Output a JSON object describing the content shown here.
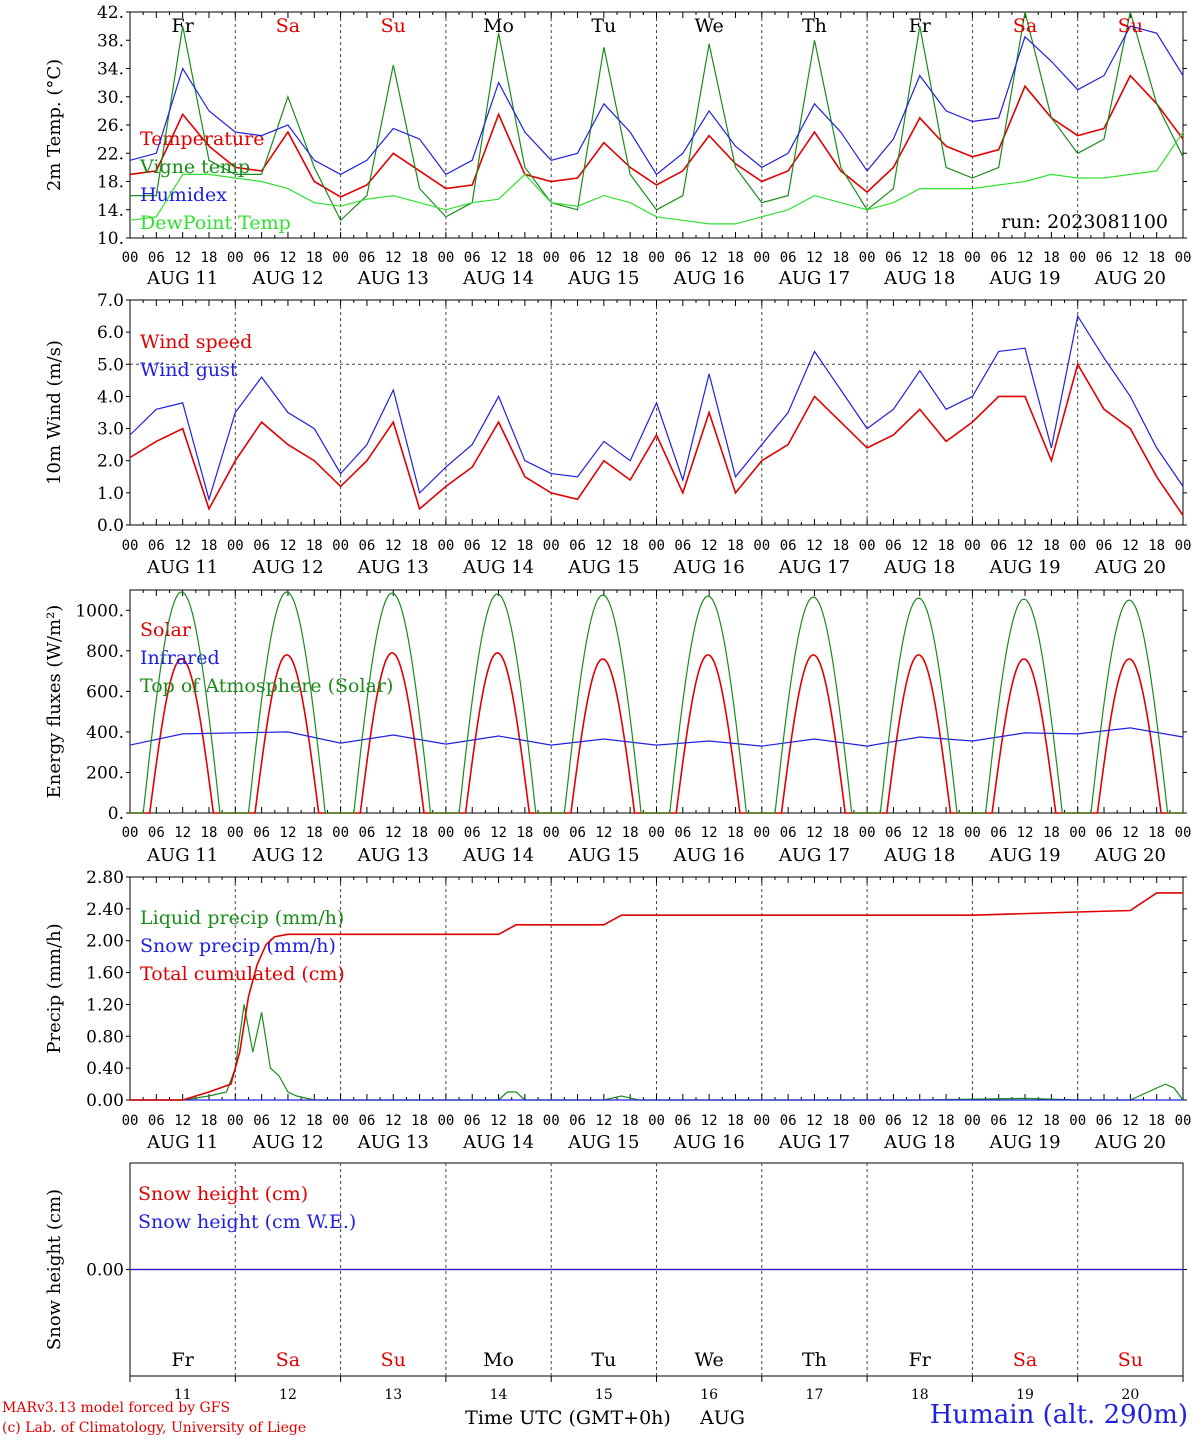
{
  "run_label": "run: 2023081100",
  "credits": [
    "MARv3.13 model forced by GFS",
    "(c) Lab. of Climatology, University of Liege"
  ],
  "station": "Humain (alt. 290m)",
  "x_axis": {
    "title": "Time UTC (GMT+0h)",
    "month": "AUG",
    "hour_ticks": [
      "00",
      "06",
      "12",
      "18"
    ],
    "final_tick": "00",
    "dates": [
      "AUG 11",
      "AUG 12",
      "AUG 13",
      "AUG 14",
      "AUG 15",
      "AUG 16",
      "AUG 17",
      "AUG 18",
      "AUG 19",
      "AUG 20"
    ],
    "day_numbers": [
      "11",
      "12",
      "13",
      "14",
      "15",
      "16",
      "17",
      "18",
      "19",
      "20"
    ],
    "weekdays": [
      "Fr",
      "Sa",
      "Su",
      "Mo",
      "Tu",
      "We",
      "Th",
      "Fr",
      "Sa",
      "Su"
    ],
    "weekend_days": [
      "Sa",
      "Su"
    ],
    "colors": {
      "weekday": "#000000",
      "weekend": "#e00000"
    }
  },
  "chart_data": [
    {
      "type": "line",
      "ylabel": "2m Temp. (°C)",
      "ylim": [
        10,
        42
      ],
      "ytick_labels": [
        "10.",
        "14.",
        "18.",
        "22.",
        "26.",
        "30.",
        "34.",
        "38.",
        "42."
      ],
      "x_unit": "hours since AUG 11 00 UTC",
      "series": [
        {
          "name": "Temperature",
          "color": "#e00000",
          "x": [
            0,
            6,
            12,
            18,
            24,
            30,
            36,
            42,
            48,
            54,
            60,
            66,
            72,
            78,
            84,
            90,
            96,
            102,
            108,
            114,
            120,
            126,
            132,
            138,
            144,
            150,
            156,
            162,
            168,
            174,
            180,
            186,
            192,
            198,
            204,
            210,
            216,
            222,
            228,
            234,
            240
          ],
          "values": [
            19,
            19.5,
            27.5,
            23,
            20,
            19.5,
            25,
            18,
            15.8,
            17.5,
            22,
            19.5,
            17,
            17.5,
            27.5,
            19,
            18,
            18.5,
            23.5,
            20,
            17.5,
            19.5,
            24.5,
            20.5,
            18,
            19.5,
            25,
            19.5,
            16.5,
            20,
            27,
            23,
            21.5,
            22.5,
            31.5,
            27,
            24.5,
            25.5,
            33,
            29,
            24
          ]
        },
        {
          "name": "Vigne temp",
          "color": "#1a8c1a",
          "x": [
            0,
            6,
            12,
            18,
            24,
            30,
            36,
            42,
            48,
            54,
            60,
            66,
            72,
            78,
            84,
            90,
            96,
            102,
            108,
            114,
            120,
            126,
            132,
            138,
            144,
            150,
            156,
            162,
            168,
            174,
            180,
            186,
            192,
            198,
            204,
            210,
            216,
            222,
            228,
            234,
            240
          ],
          "values": [
            16,
            16,
            40,
            21,
            19,
            19,
            30,
            20,
            12.5,
            16,
            34.5,
            17,
            13,
            15,
            39,
            20,
            15,
            14,
            37,
            19,
            14,
            16,
            37.5,
            20,
            15,
            16,
            38,
            20,
            14,
            17,
            40,
            20,
            18.5,
            20,
            42,
            27,
            22,
            24,
            42,
            29,
            21.5
          ]
        },
        {
          "name": "Humidex",
          "color": "#2020e0",
          "x": [
            0,
            6,
            12,
            18,
            24,
            30,
            36,
            42,
            48,
            54,
            60,
            66,
            72,
            78,
            84,
            90,
            96,
            102,
            108,
            114,
            120,
            126,
            132,
            138,
            144,
            150,
            156,
            162,
            168,
            174,
            180,
            186,
            192,
            198,
            204,
            210,
            216,
            222,
            228,
            234,
            240
          ],
          "values": [
            21,
            22,
            34,
            28,
            25,
            24.5,
            26,
            21,
            19,
            21,
            25.5,
            24,
            19,
            21,
            32,
            25,
            21,
            22,
            29,
            25,
            19,
            22,
            28,
            23,
            20,
            22,
            29,
            25,
            19.5,
            24,
            33,
            28,
            26.5,
            27,
            38.5,
            35,
            31,
            33,
            40,
            39,
            33
          ]
        },
        {
          "name": "DewPoint Temp",
          "color": "#30e030",
          "x": [
            0,
            6,
            12,
            18,
            24,
            30,
            36,
            42,
            48,
            54,
            60,
            66,
            72,
            78,
            84,
            90,
            96,
            102,
            108,
            114,
            120,
            126,
            132,
            138,
            144,
            150,
            156,
            162,
            168,
            174,
            180,
            186,
            192,
            198,
            204,
            210,
            216,
            222,
            228,
            234,
            240
          ],
          "values": [
            12.5,
            13,
            19,
            19,
            18.5,
            18,
            17,
            15,
            14.5,
            15.5,
            16,
            15,
            14,
            15,
            15.5,
            19,
            15,
            14.5,
            16,
            15,
            13,
            12.5,
            12,
            12,
            13,
            14,
            16,
            15,
            14,
            15,
            17,
            17,
            17,
            17.5,
            18,
            19,
            18.5,
            18.5,
            19,
            19.5,
            25
          ]
        }
      ]
    },
    {
      "type": "line",
      "ylabel": "10m Wind (m/s)",
      "ylim": [
        0,
        7
      ],
      "ytick_labels": [
        "0.0",
        "1.0",
        "2.0",
        "3.0",
        "4.0",
        "5.0",
        "6.0",
        "7.0"
      ],
      "reference_line": 5,
      "x_unit": "hours since AUG 11 00 UTC",
      "series": [
        {
          "name": "Wind speed",
          "color": "#e00000",
          "x": [
            0,
            6,
            12,
            18,
            24,
            30,
            36,
            42,
            48,
            54,
            60,
            66,
            72,
            78,
            84,
            90,
            96,
            102,
            108,
            114,
            120,
            126,
            132,
            138,
            144,
            150,
            156,
            162,
            168,
            174,
            180,
            186,
            192,
            198,
            204,
            210,
            216,
            222,
            228,
            234,
            240
          ],
          "values": [
            2.1,
            2.6,
            3,
            0.5,
            2,
            3.2,
            2.5,
            2,
            1.2,
            2,
            3.2,
            0.5,
            1.2,
            1.8,
            3.2,
            1.5,
            1,
            0.8,
            2,
            1.4,
            2.8,
            1,
            3.5,
            1,
            2,
            2.5,
            4,
            3.2,
            2.4,
            2.8,
            3.6,
            2.6,
            3.2,
            4,
            4,
            2,
            5,
            3.6,
            3,
            1.5,
            0.3
          ]
        },
        {
          "name": "Wind gust",
          "color": "#2020e0",
          "x": [
            0,
            6,
            12,
            18,
            24,
            30,
            36,
            42,
            48,
            54,
            60,
            66,
            72,
            78,
            84,
            90,
            96,
            102,
            108,
            114,
            120,
            126,
            132,
            138,
            144,
            150,
            156,
            162,
            168,
            174,
            180,
            186,
            192,
            198,
            204,
            210,
            216,
            222,
            228,
            234,
            240
          ],
          "values": [
            2.8,
            3.6,
            3.8,
            0.8,
            3.5,
            4.6,
            3.5,
            3,
            1.6,
            2.5,
            4.2,
            1,
            1.8,
            2.5,
            4,
            2,
            1.6,
            1.5,
            2.6,
            2,
            3.8,
            1.4,
            4.7,
            1.5,
            2.5,
            3.5,
            5.4,
            4.2,
            3,
            3.6,
            4.8,
            3.6,
            4,
            5.4,
            5.5,
            2.4,
            6.5,
            5.2,
            4,
            2.4,
            1.2
          ]
        }
      ]
    },
    {
      "type": "line",
      "ylabel": "Energy fluxes (W/m²)",
      "ylim": [
        0,
        1100
      ],
      "ytick_labels": [
        "0.",
        "200.",
        "400.",
        "600.",
        "800.",
        "1000."
      ],
      "x_unit": "hours since AUG 11 00 UTC",
      "series": [
        {
          "name": "Solar",
          "color": "#e00000",
          "diurnal": true,
          "sunrise_h": 4.5,
          "sunset_h": 19,
          "daily_peak": [
            760,
            780,
            790,
            790,
            760,
            780,
            780,
            780,
            760,
            760
          ]
        },
        {
          "name": "Infrared",
          "color": "#2020e0",
          "x": [
            0,
            12,
            24,
            36,
            48,
            60,
            72,
            84,
            96,
            108,
            120,
            132,
            144,
            156,
            168,
            180,
            192,
            204,
            216,
            228,
            240
          ],
          "values": [
            335,
            390,
            395,
            400,
            345,
            385,
            340,
            380,
            335,
            365,
            335,
            355,
            330,
            365,
            330,
            375,
            355,
            395,
            390,
            420,
            375
          ]
        },
        {
          "name": "Top of Atmosphere (Solar)",
          "color": "#1a8c1a",
          "diurnal": true,
          "sunrise_h": 3,
          "sunset_h": 20.5,
          "daily_peak": [
            1090,
            1090,
            1085,
            1080,
            1075,
            1070,
            1065,
            1060,
            1055,
            1050
          ]
        }
      ]
    },
    {
      "type": "line",
      "ylabel": "Precip (mm/h)",
      "ylim": [
        0,
        2.8
      ],
      "ytick_labels": [
        "0.00",
        "0.40",
        "0.80",
        "1.20",
        "1.60",
        "2.00",
        "2.40",
        "2.80"
      ],
      "x_unit": "hours since AUG 11 00 UTC",
      "series": [
        {
          "name": "Liquid precip (mm/h)",
          "color": "#1a8c1a",
          "x": [
            0,
            12,
            18,
            22,
            24,
            26,
            28,
            30,
            32,
            34,
            36,
            38,
            42,
            48,
            84,
            86,
            88,
            90,
            108,
            112,
            116,
            180,
            204,
            216,
            228,
            232,
            236,
            238,
            240
          ],
          "values": [
            0,
            0,
            0.05,
            0.1,
            0.4,
            1.2,
            0.6,
            1.1,
            0.4,
            0.3,
            0.1,
            0.05,
            0,
            0,
            0,
            0.1,
            0.1,
            0,
            0,
            0.05,
            0,
            0,
            0.02,
            0,
            0,
            0.1,
            0.2,
            0.15,
            0
          ]
        },
        {
          "name": "Snow precip (mm/h)",
          "color": "#2020e0",
          "x": [
            0,
            240
          ],
          "values": [
            0,
            0
          ]
        },
        {
          "name": "Total cumulated (cm)",
          "color": "#e00000",
          "x": [
            0,
            12,
            18,
            23,
            25,
            27,
            29,
            31,
            33,
            36,
            48,
            72,
            84,
            88,
            108,
            112,
            120,
            192,
            216,
            228,
            234,
            240
          ],
          "values": [
            0,
            0,
            0.1,
            0.2,
            0.6,
            1.3,
            1.7,
            1.95,
            2.05,
            2.08,
            2.08,
            2.08,
            2.08,
            2.2,
            2.2,
            2.32,
            2.32,
            2.32,
            2.36,
            2.38,
            2.6,
            2.6
          ]
        }
      ]
    },
    {
      "type": "line",
      "ylabel": "Snow height (cm)",
      "ylim": [
        -1,
        1
      ],
      "ytick_labels": [
        "0.00"
      ],
      "x_unit": "hours since AUG 11 00 UTC",
      "series": [
        {
          "name": "Snow height (cm)",
          "color": "#e00000",
          "x": [
            0,
            240
          ],
          "values": [
            0,
            0
          ]
        },
        {
          "name": "Snow height (cm W.E.)",
          "color": "#2020e0",
          "x": [
            0,
            240
          ],
          "values": [
            0,
            0
          ]
        }
      ]
    }
  ]
}
